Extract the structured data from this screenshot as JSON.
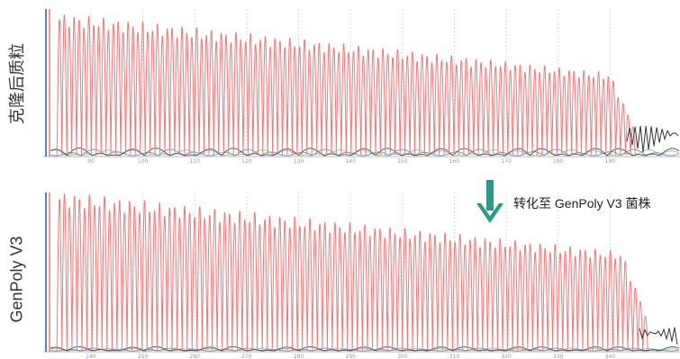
{
  "labels": {
    "top_side": "克隆后质粒",
    "bottom_side": "GenPoly V3",
    "transition_note": "转化至 GenPoly V3 菌株"
  },
  "colors": {
    "trace_red": "#ef7a7a",
    "trace_blue": "#5b7fd6",
    "trace_green": "#8cbf6a",
    "trace_black": "#333333",
    "arrow": "#2a9a8a",
    "grid": "#d9d9d9",
    "axis_text": "#999999"
  },
  "icons": {
    "arrow": "arrow-down-icon"
  },
  "chart_data": [
    {
      "type": "line",
      "title": "",
      "series": [
        {
          "name": "",
          "color_key": "trace_red",
          "peak_count": 118,
          "envelope_start": 0.92,
          "envelope_end": 0.52
        }
      ],
      "x_ticks": [
        "90",
        "100",
        "110",
        "120",
        "130",
        "140",
        "150",
        "160",
        "170",
        "180",
        "190"
      ],
      "grid": true
    },
    {
      "type": "line",
      "title": "",
      "series": [
        {
          "name": "",
          "color_key": "trace_red",
          "peak_count": 118,
          "envelope_start": 0.95,
          "envelope_end": 0.58
        }
      ],
      "x_ticks": [
        "240",
        "250",
        "260",
        "270",
        "280",
        "290",
        "300",
        "310",
        "320",
        "330",
        "340"
      ],
      "grid": true
    }
  ]
}
